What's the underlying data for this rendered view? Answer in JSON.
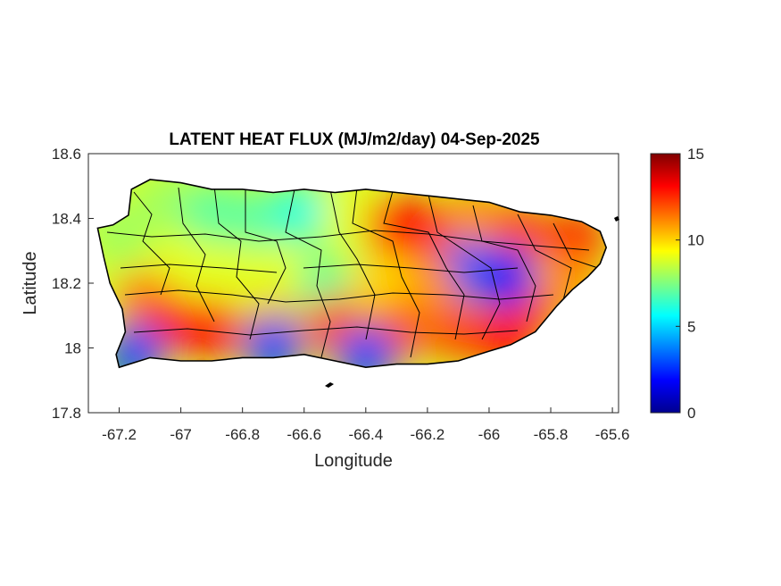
{
  "chart_data": {
    "type": "heatmap",
    "title": "LATENT HEAT FLUX (MJ/m2/day) 04-Sep-2025",
    "xlabel": "Longitude",
    "ylabel": "Latitude",
    "xlim": [
      -67.3,
      -65.58
    ],
    "ylim": [
      17.8,
      18.6
    ],
    "x_ticks": [
      -67.2,
      -67,
      -66.8,
      -66.6,
      -66.4,
      -66.2,
      -66,
      -65.8,
      -65.6
    ],
    "x_tick_labels": [
      "-67.2",
      "-67",
      "-66.8",
      "-66.6",
      "-66.4",
      "-66.2",
      "-66",
      "-65.8",
      "-65.6"
    ],
    "y_ticks": [
      17.8,
      18,
      18.2,
      18.4,
      18.6
    ],
    "y_tick_labels": [
      "17.8",
      "18",
      "18.2",
      "18.4",
      "18.6"
    ],
    "colorbar": {
      "colormap": "jet",
      "range": [
        0,
        15
      ],
      "ticks": [
        0,
        5,
        10,
        15
      ],
      "tick_labels": [
        "0",
        "5",
        "10",
        "15"
      ]
    },
    "region": "Puerto Rico municipalities",
    "outline": [
      [
        -67.27,
        18.37
      ],
      [
        -67.22,
        18.38
      ],
      [
        -67.17,
        18.41
      ],
      [
        -67.16,
        18.49
      ],
      [
        -67.1,
        18.52
      ],
      [
        -67.0,
        18.51
      ],
      [
        -66.9,
        18.49
      ],
      [
        -66.8,
        18.49
      ],
      [
        -66.7,
        18.48
      ],
      [
        -66.6,
        18.49
      ],
      [
        -66.5,
        18.48
      ],
      [
        -66.4,
        18.49
      ],
      [
        -66.3,
        18.48
      ],
      [
        -66.2,
        18.47
      ],
      [
        -66.1,
        18.46
      ],
      [
        -66.0,
        18.45
      ],
      [
        -65.9,
        18.42
      ],
      [
        -65.8,
        18.41
      ],
      [
        -65.7,
        18.39
      ],
      [
        -65.64,
        18.36
      ],
      [
        -65.62,
        18.31
      ],
      [
        -65.64,
        18.26
      ],
      [
        -65.68,
        18.22
      ],
      [
        -65.73,
        18.18
      ],
      [
        -65.78,
        18.13
      ],
      [
        -65.85,
        18.05
      ],
      [
        -65.93,
        18.01
      ],
      [
        -66.0,
        17.99
      ],
      [
        -66.1,
        17.96
      ],
      [
        -66.2,
        17.95
      ],
      [
        -66.3,
        17.95
      ],
      [
        -66.4,
        17.94
      ],
      [
        -66.5,
        17.96
      ],
      [
        -66.6,
        17.98
      ],
      [
        -66.7,
        17.97
      ],
      [
        -66.8,
        17.97
      ],
      [
        -66.9,
        17.96
      ],
      [
        -67.0,
        17.96
      ],
      [
        -67.1,
        17.97
      ],
      [
        -67.2,
        17.94
      ],
      [
        -67.21,
        17.98
      ],
      [
        -67.18,
        18.05
      ],
      [
        -67.19,
        18.12
      ],
      [
        -67.23,
        18.2
      ],
      [
        -67.25,
        18.28
      ]
    ],
    "data_points": [
      {
        "lon": -67.2,
        "lat": 18.35,
        "value": 8
      },
      {
        "lon": -67.05,
        "lat": 18.45,
        "value": 8
      },
      {
        "lon": -66.9,
        "lat": 18.42,
        "value": 7
      },
      {
        "lon": -66.75,
        "lat": 18.4,
        "value": 7
      },
      {
        "lon": -66.6,
        "lat": 18.42,
        "value": 6
      },
      {
        "lon": -66.45,
        "lat": 18.42,
        "value": 9
      },
      {
        "lon": -66.3,
        "lat": 18.38,
        "value": 13
      },
      {
        "lon": -66.2,
        "lat": 18.36,
        "value": 13
      },
      {
        "lon": -66.05,
        "lat": 18.4,
        "value": 11
      },
      {
        "lon": -65.9,
        "lat": 18.36,
        "value": 12
      },
      {
        "lon": -65.72,
        "lat": 18.33,
        "value": 13
      },
      {
        "lon": -65.75,
        "lat": 18.2,
        "value": 11
      },
      {
        "lon": -65.88,
        "lat": 18.1,
        "value": 12
      },
      {
        "lon": -65.95,
        "lat": 18.22,
        "value": 2
      },
      {
        "lon": -66.08,
        "lat": 18.24,
        "value": 3
      },
      {
        "lon": -66.2,
        "lat": 18.2,
        "value": 11
      },
      {
        "lon": -66.35,
        "lat": 18.2,
        "value": 10
      },
      {
        "lon": -66.55,
        "lat": 18.2,
        "value": 7
      },
      {
        "lon": -66.7,
        "lat": 18.22,
        "value": 9
      },
      {
        "lon": -66.85,
        "lat": 18.22,
        "value": 9
      },
      {
        "lon": -67.0,
        "lat": 18.25,
        "value": 9
      },
      {
        "lon": -67.12,
        "lat": 18.15,
        "value": 11
      },
      {
        "lon": -67.05,
        "lat": 18.08,
        "value": 13
      },
      {
        "lon": -66.9,
        "lat": 18.06,
        "value": 13
      },
      {
        "lon": -66.7,
        "lat": 18.06,
        "value": 11
      },
      {
        "lon": -66.5,
        "lat": 18.07,
        "value": 12
      },
      {
        "lon": -66.3,
        "lat": 18.05,
        "value": 12
      },
      {
        "lon": -66.1,
        "lat": 18.05,
        "value": 12
      },
      {
        "lon": -65.95,
        "lat": 18.03,
        "value": 13
      },
      {
        "lon": -67.15,
        "lat": 17.98,
        "value": 3
      },
      {
        "lon": -66.7,
        "lat": 18.0,
        "value": 3
      },
      {
        "lon": -66.4,
        "lat": 17.97,
        "value": 3
      }
    ]
  }
}
